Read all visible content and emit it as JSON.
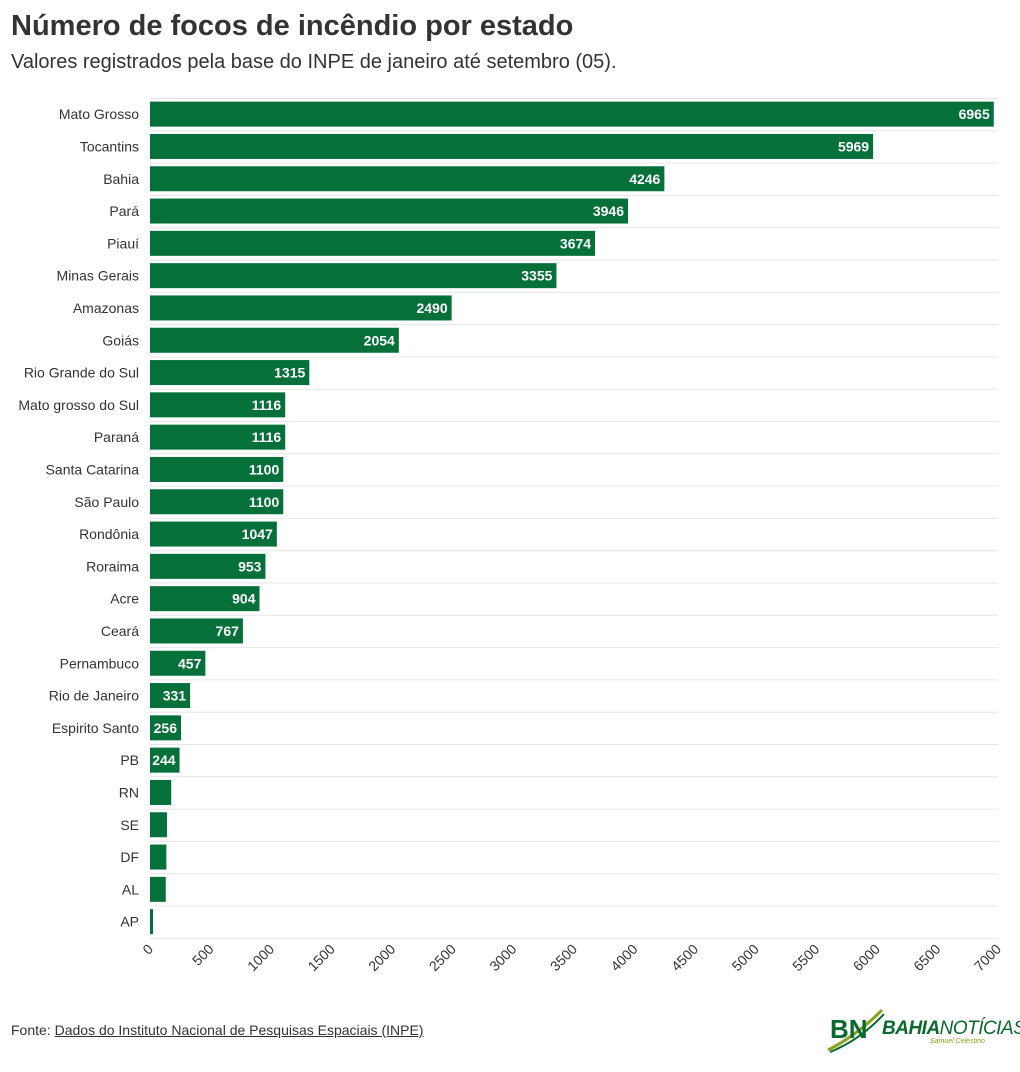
{
  "title": "Número de focos de incêndio por estado",
  "subtitle": "Valores registrados pela base do INPE de janeiro até setembro (05).",
  "footer": {
    "prefix": "Fonte:",
    "source_link": "Dados do Instituto Nacional de Pesquisas Espaciais (INPE)"
  },
  "logo": {
    "monogram": "BN",
    "word_bold": "BAHIA",
    "word_light": "NOTÍCIAS",
    "tagline": "Samuel Celestino"
  },
  "colors": {
    "bar": "#06703a",
    "grid": "#e6e6e6",
    "logo_green": "#0a6a2d",
    "logo_lime": "#8aa21a"
  },
  "chart_data": {
    "type": "bar",
    "orientation": "horizontal",
    "title": "Número de focos de incêndio por estado",
    "subtitle": "Valores registrados pela base do INPE de janeiro até setembro (05).",
    "xlabel": "",
    "ylabel": "",
    "xlim": [
      0,
      7000
    ],
    "xticks": [
      0,
      500,
      1000,
      1500,
      2000,
      2500,
      3000,
      3500,
      4000,
      4500,
      5000,
      5500,
      6000,
      6500,
      7000
    ],
    "xtick_rotation": -45,
    "grid": "horizontal lines between rows",
    "legend": "none",
    "categories": [
      "Mato Grosso",
      "Tocantins",
      "Bahia",
      "Pará",
      "Piauí",
      "Minas Gerais",
      "Amazonas",
      "Goiás",
      "Rio Grande do Sul",
      "Mato grosso do Sul",
      "Paraná",
      "Santa Catarina",
      "São Paulo",
      "Rondônia",
      "Roraima",
      "Acre",
      "Ceará",
      "Pernambuco",
      "Rio de Janeiro",
      "Espirito Santo",
      "PB",
      "RN",
      "SE",
      "DF",
      "AL",
      "AP"
    ],
    "values": [
      6965,
      5969,
      4246,
      3946,
      3674,
      3355,
      2490,
      2054,
      1315,
      1116,
      1116,
      1100,
      1100,
      1047,
      953,
      904,
      767,
      457,
      331,
      256,
      244,
      175,
      140,
      135,
      130,
      25
    ],
    "value_labels_shown": [
      true,
      true,
      true,
      true,
      true,
      true,
      true,
      true,
      true,
      true,
      true,
      true,
      true,
      true,
      true,
      true,
      true,
      true,
      true,
      true,
      true,
      false,
      false,
      false,
      false,
      false
    ]
  }
}
